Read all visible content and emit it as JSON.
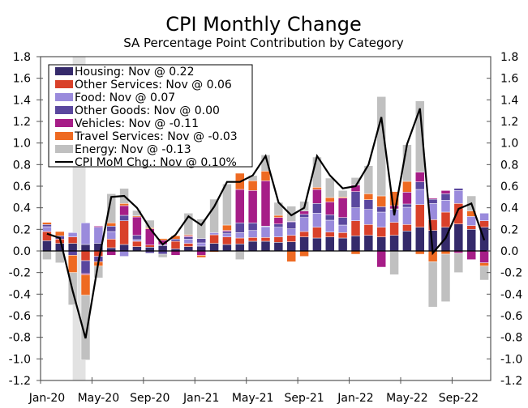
{
  "chart_data": {
    "type": "bar",
    "title": "CPI Monthly Change",
    "subtitle": "SA Percentage Point Contribution by Category",
    "xlabel": "",
    "ylabel": "",
    "ylim": [
      -1.2,
      1.8
    ],
    "yticks": [
      "1.8",
      "1.6",
      "1.4",
      "1.2",
      "1.0",
      "0.8",
      "0.6",
      "0.4",
      "0.2",
      "0.0",
      "-0.2",
      "-0.4",
      "-0.6",
      "-0.8",
      "-1.0",
      "-1.2"
    ],
    "ytick_values": [
      1.8,
      1.6,
      1.4,
      1.2,
      1.0,
      0.8,
      0.6,
      0.4,
      0.2,
      0.0,
      -0.2,
      -0.4,
      -0.6,
      -0.8,
      -1.0,
      -1.2
    ],
    "xtick_labels": [
      {
        "label": "Jan-20",
        "index": 0
      },
      {
        "label": "May-20",
        "index": 4
      },
      {
        "label": "Sep-20",
        "index": 8
      },
      {
        "label": "Jan-21",
        "index": 12
      },
      {
        "label": "May-21",
        "index": 16
      },
      {
        "label": "Sep-21",
        "index": 20
      },
      {
        "label": "Jan-22",
        "index": 24
      },
      {
        "label": "May-22",
        "index": 28
      },
      {
        "label": "Sep-22",
        "index": 32
      }
    ],
    "months": [
      "Jan-20",
      "Feb-20",
      "Mar-20",
      "Apr-20",
      "May-20",
      "Jun-20",
      "Jul-20",
      "Aug-20",
      "Sep-20",
      "Oct-20",
      "Nov-20",
      "Dec-20",
      "Jan-21",
      "Feb-21",
      "Mar-21",
      "Apr-21",
      "May-21",
      "Jun-21",
      "Jul-21",
      "Aug-21",
      "Sep-21",
      "Oct-21",
      "Nov-21",
      "Dec-21",
      "Jan-22",
      "Feb-22",
      "Mar-22",
      "Apr-22",
      "May-22",
      "Jun-22",
      "Jul-22",
      "Aug-22",
      "Sep-22",
      "Oct-22",
      "Nov-22"
    ],
    "recession_shading": {
      "from_index": 2,
      "to_index": 3
    },
    "legend_position": "top-left",
    "series": [
      {
        "name": "Housing",
        "legend": "Housing: Nov @ 0.22",
        "color": "#352a6b",
        "values": [
          0.095,
          0.07,
          0.07,
          0.06,
          0.07,
          0.03,
          0.06,
          0.04,
          0.035,
          0.05,
          0.02,
          0.04,
          0.045,
          0.07,
          0.06,
          0.065,
          0.09,
          0.09,
          0.08,
          0.085,
          0.13,
          0.12,
          0.13,
          0.12,
          0.14,
          0.145,
          0.13,
          0.145,
          0.185,
          0.22,
          0.19,
          0.22,
          0.25,
          0.2,
          0.22
        ]
      },
      {
        "name": "Other Services",
        "legend": "Other Services: Nov @ 0.06",
        "color": "#d9412a",
        "values": [
          0.085,
          0.04,
          0.06,
          -0.09,
          -0.05,
          0.08,
          0.22,
          0.05,
          0.02,
          0,
          0.07,
          0.03,
          0,
          0.08,
          0.07,
          0.055,
          0.035,
          0.035,
          0.05,
          0.06,
          0.05,
          0.1,
          0.045,
          0.05,
          0.14,
          0.1,
          0.09,
          0.12,
          0.06,
          0.21,
          0.1,
          0.14,
          0.19,
          0.035,
          0.06
        ]
      },
      {
        "name": "Food",
        "legend": "Food: Nov @ 0.07",
        "color": "#9a8bdc",
        "values": [
          0.045,
          0,
          0.04,
          0.2,
          0.15,
          0.07,
          -0.05,
          0.015,
          0,
          0.01,
          0,
          0.04,
          0.03,
          0.02,
          0.03,
          0.05,
          0.065,
          0.1,
          0.09,
          0.06,
          0.13,
          0.13,
          0.11,
          0.07,
          0.12,
          0.14,
          0.14,
          0.12,
          0.16,
          0.14,
          0.15,
          0.11,
          0.12,
          0.085,
          0.07
        ]
      },
      {
        "name": "Other Goods",
        "legend": "Other Goods: Nov @ 0.00",
        "color": "#5a479e",
        "values": [
          0.02,
          0.03,
          -0.04,
          -0.12,
          -0.05,
          0.05,
          0.05,
          0.04,
          -0.02,
          -0.03,
          0.02,
          0.02,
          0.04,
          0,
          0.02,
          0.09,
          0.07,
          0.005,
          0.03,
          0.065,
          0.03,
          0.09,
          0.05,
          0.07,
          0.15,
          0.09,
          0.05,
          0.005,
          0.03,
          0.07,
          0.04,
          0.06,
          0.02,
          0,
          0
        ]
      },
      {
        "name": "Vehicles",
        "legend": "Vehicles: Nov @ -0.11",
        "color": "#a61d87",
        "values": [
          0,
          0,
          0,
          -0.01,
          0.01,
          -0.04,
          0.09,
          0.17,
          0.15,
          0.04,
          -0.04,
          0.01,
          -0.04,
          0,
          0.01,
          0.31,
          0.3,
          0.42,
          0.06,
          0.005,
          0.03,
          0.13,
          0.12,
          0.18,
          0.06,
          0,
          -0.15,
          0.03,
          0.11,
          0.09,
          0.01,
          0.03,
          -0.02,
          -0.08,
          -0.11
        ]
      },
      {
        "name": "Travel Services",
        "legend": "Travel Services: Nov @ -0.03",
        "color": "#ee6a22",
        "values": [
          0.02,
          0.04,
          -0.16,
          -0.19,
          -0.04,
          0.03,
          0.02,
          0.01,
          0.01,
          0.015,
          0.03,
          0.01,
          -0.02,
          -0.01,
          0.05,
          0.15,
          0.09,
          0.09,
          0.02,
          -0.1,
          -0.05,
          0.02,
          0.04,
          0.01,
          -0.03,
          0.055,
          0.1,
          0.13,
          0.1,
          -0.03,
          -0.1,
          -0.03,
          0,
          0.05,
          -0.03
        ]
      },
      {
        "name": "Energy",
        "legend": "Energy: Nov @ -0.13",
        "color": "#c0c0c0",
        "values": [
          -0.08,
          -0.11,
          -0.3,
          -0.6,
          -0.11,
          0.27,
          0.14,
          0.05,
          0.07,
          -0.03,
          0,
          0.2,
          0.18,
          0.31,
          0.38,
          -0.08,
          0.05,
          0.15,
          0.12,
          0.14,
          0.09,
          0.28,
          0.18,
          0.06,
          0.07,
          0.26,
          0.92,
          -0.22,
          0.34,
          0.66,
          -0.42,
          -0.44,
          -0.18,
          0.14,
          -0.13
        ]
      }
    ],
    "line": {
      "name": "CPI MoM Chg.",
      "legend": "CPI MoM Chg.: Nov @ 0.10%",
      "color": "#000000",
      "values": [
        0.16,
        0.12,
        -0.37,
        -0.81,
        -0.1,
        0.5,
        0.51,
        0.4,
        0.21,
        0.06,
        0.15,
        0.32,
        0.24,
        0.41,
        0.64,
        0.64,
        0.7,
        0.88,
        0.45,
        0.33,
        0.4,
        0.88,
        0.7,
        0.58,
        0.6,
        0.8,
        1.24,
        0.33,
        0.99,
        1.32,
        -0.02,
        0.12,
        0.39,
        0.44,
        0.1
      ]
    }
  }
}
